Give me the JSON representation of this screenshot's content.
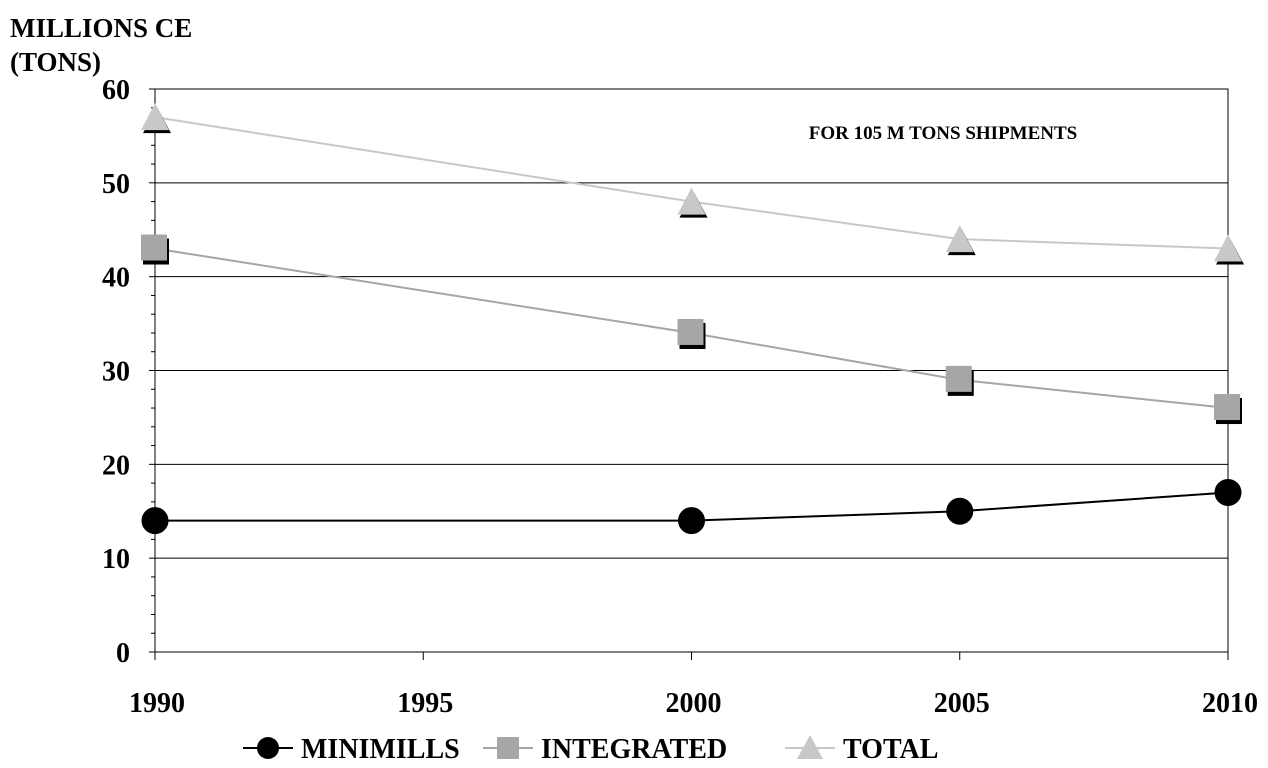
{
  "chart_data": {
    "type": "line",
    "ylabel_lines": [
      "MILLIONS CE",
      "(TONS)"
    ],
    "annotation": "FOR 105 M TONS SHIPMENTS",
    "x": [
      1990,
      2000,
      2005,
      2010
    ],
    "xticks": [
      "1990",
      "1995",
      "2000",
      "2005",
      "2010"
    ],
    "xlim": [
      1990,
      2010
    ],
    "yticks": [
      "0",
      "10",
      "20",
      "30",
      "40",
      "50",
      "60"
    ],
    "ylim": [
      0,
      60
    ],
    "grid": true,
    "legend_position": "bottom",
    "series": [
      {
        "name": "MINIMILLS",
        "values": [
          14,
          14,
          15,
          17
        ],
        "color": "#000000",
        "marker": "circle"
      },
      {
        "name": "INTEGRATED",
        "values": [
          43,
          34,
          29,
          26
        ],
        "color": "#a6a6a6",
        "marker": "square"
      },
      {
        "name": "TOTAL",
        "values": [
          57,
          48,
          44,
          43
        ],
        "color": "#c8c8c8",
        "marker": "triangle"
      }
    ]
  }
}
